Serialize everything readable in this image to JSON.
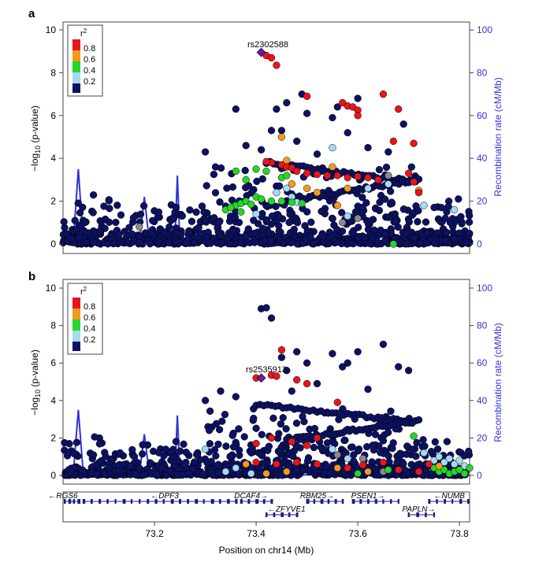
{
  "figure": {
    "xlabel": "Position on chr14 (Mb)",
    "x_ticks": [
      "73.2",
      "73.4",
      "73.6",
      "73.8"
    ]
  },
  "colors": {
    "r2_0.8": "#e8161b",
    "r2_0.6": "#f39a1d",
    "r2_0.4": "#27d628",
    "r2_0.2": "#a6d9f2",
    "r2_0.0": "#0c1261",
    "lead": "#6a1ca0",
    "missing": "#8a8a8a",
    "recomb": "#3232d9"
  },
  "legend": {
    "title_base": "r",
    "title_sup": "2",
    "labels": [
      "0.8",
      "0.6",
      "0.4",
      "0.2"
    ]
  },
  "panels": [
    {
      "letter": "a",
      "lead_snp": "rs2302588",
      "ylabel_prefix": "−log",
      "ylabel_sub": "10",
      "ylabel_suffix": " (p-value)",
      "y2label": "Recombination rate (cM/Mb)",
      "y_ticks": [
        "0",
        "2",
        "4",
        "6",
        "8",
        "10"
      ],
      "y2_ticks": [
        "0",
        "20",
        "40",
        "60",
        "80",
        "100"
      ]
    },
    {
      "letter": "b",
      "lead_snp": "rs2535913",
      "ylabel_prefix": "−log",
      "ylabel_sub": "10",
      "ylabel_suffix": " (p-value)",
      "y2label": "Recombination rate (cM/Mb)",
      "y_ticks": [
        "0",
        "2",
        "4",
        "6",
        "8",
        "10"
      ],
      "y2_ticks": [
        "0",
        "20",
        "40",
        "60",
        "80",
        "100"
      ]
    }
  ],
  "genes": [
    {
      "name": "RGS6",
      "start": 73.02,
      "end": 73.05,
      "strand": "-",
      "row": 0,
      "label_x": 73.02
    },
    {
      "name": "DPF3",
      "start": 73.06,
      "end": 73.36,
      "strand": "-",
      "row": 0,
      "label_x": 73.22
    },
    {
      "name": "DCAF4",
      "start": 73.37,
      "end": 73.43,
      "strand": "+",
      "row": 0,
      "label_x": 73.39
    },
    {
      "name": "ZFYVE1",
      "start": 73.42,
      "end": 73.48,
      "strand": "-",
      "row": 1,
      "label_x": 73.46
    },
    {
      "name": "RBM25",
      "start": 73.5,
      "end": 73.57,
      "strand": "+",
      "row": 0,
      "label_x": 73.52
    },
    {
      "name": "PSEN1",
      "start": 73.59,
      "end": 73.68,
      "strand": "+",
      "row": 0,
      "label_x": 73.62
    },
    {
      "name": "PAPLN",
      "start": 73.7,
      "end": 73.75,
      "strand": "+",
      "row": 1,
      "label_x": 73.72
    },
    {
      "name": "NUMB",
      "start": 73.74,
      "end": 73.82,
      "strand": "-",
      "row": 0,
      "label_x": 73.78
    }
  ],
  "chart_data": [
    {
      "type": "scatter",
      "xlabel": "Position on chr14 (Mb)",
      "ylabel": "−log10 (p-value)",
      "y2label": "Recombination rate (cM/Mb)",
      "xlim": [
        73.02,
        73.82
      ],
      "ylim": [
        0,
        10
      ],
      "y2lim": [
        0,
        100
      ],
      "annotation": "rs2302588",
      "points": [
        [
          73.41,
          8.95,
          "lead"
        ],
        [
          73.42,
          8.8,
          "0.8"
        ],
        [
          73.43,
          8.7,
          "0.8"
        ],
        [
          73.44,
          8.35,
          "0.8"
        ],
        [
          73.5,
          6.9,
          "0.8"
        ],
        [
          73.57,
          6.6,
          "0.8"
        ],
        [
          73.58,
          6.45,
          "0.8"
        ],
        [
          73.59,
          6.4,
          "0.8"
        ],
        [
          73.6,
          6.25,
          "0.8"
        ],
        [
          73.65,
          7.0,
          "0.8"
        ],
        [
          73.6,
          6.0,
          "0.8"
        ],
        [
          73.67,
          4.8,
          "0.8"
        ],
        [
          73.71,
          4.7,
          "0.8"
        ],
        [
          73.68,
          6.3,
          "0.8"
        ],
        [
          73.45,
          3.7,
          "0.8"
        ],
        [
          73.46,
          3.6,
          "0.8"
        ],
        [
          73.47,
          3.55,
          "0.8"
        ],
        [
          73.48,
          3.4,
          "0.8"
        ],
        [
          73.5,
          3.3,
          "0.8"
        ],
        [
          73.52,
          3.25,
          "0.8"
        ],
        [
          73.54,
          3.2,
          "0.8"
        ],
        [
          73.56,
          3.2,
          "0.8"
        ],
        [
          73.58,
          3.1,
          "0.8"
        ],
        [
          73.6,
          3.15,
          "0.8"
        ],
        [
          73.62,
          3.1,
          "0.8"
        ],
        [
          73.64,
          3.0,
          "0.8"
        ],
        [
          73.7,
          3.3,
          "0.8"
        ],
        [
          73.71,
          2.9,
          "0.8"
        ],
        [
          73.72,
          2.4,
          "0.8"
        ],
        [
          73.43,
          3.8,
          "0.8"
        ],
        [
          73.42,
          3.85,
          "0.8"
        ],
        [
          73.45,
          5.0,
          "0.6"
        ],
        [
          73.46,
          3.9,
          "0.6"
        ],
        [
          73.47,
          2.8,
          "0.6"
        ],
        [
          73.52,
          2.4,
          "0.6"
        ],
        [
          73.55,
          3.6,
          "0.6"
        ],
        [
          73.56,
          1.8,
          "0.6"
        ],
        [
          73.72,
          2.5,
          "0.6"
        ],
        [
          73.5,
          2.6,
          "0.6"
        ],
        [
          73.58,
          2.6,
          "0.6"
        ],
        [
          73.36,
          3.4,
          "0.4"
        ],
        [
          73.38,
          3.0,
          "0.4"
        ],
        [
          73.4,
          3.5,
          "0.4"
        ],
        [
          73.42,
          3.4,
          "0.4"
        ],
        [
          73.36,
          1.8,
          "0.4"
        ],
        [
          73.37,
          1.9,
          "0.4"
        ],
        [
          73.38,
          2.0,
          "0.4"
        ],
        [
          73.39,
          1.85,
          "0.4"
        ],
        [
          73.4,
          2.2,
          "0.4"
        ],
        [
          73.41,
          2.1,
          "0.4"
        ],
        [
          73.43,
          2.0,
          "0.4"
        ],
        [
          73.45,
          2.0,
          "0.4"
        ],
        [
          73.47,
          1.95,
          "0.4"
        ],
        [
          73.49,
          1.9,
          "0.4"
        ],
        [
          73.34,
          1.6,
          "0.4"
        ],
        [
          73.35,
          1.7,
          "0.4"
        ],
        [
          73.37,
          1.5,
          "0.4"
        ],
        [
          73.45,
          3.1,
          "0.4"
        ],
        [
          73.46,
          3.2,
          "0.4"
        ],
        [
          73.67,
          0.0,
          "0.4"
        ],
        [
          73.55,
          4.5,
          "0.2"
        ],
        [
          73.44,
          2.4,
          "0.2"
        ],
        [
          73.46,
          2.6,
          "0.2"
        ],
        [
          73.47,
          2.2,
          "0.2"
        ],
        [
          73.48,
          1.95,
          "0.2"
        ],
        [
          73.62,
          2.6,
          "0.2"
        ],
        [
          73.66,
          2.8,
          "0.2"
        ],
        [
          73.73,
          1.8,
          "0.2"
        ],
        [
          73.79,
          1.6,
          "0.2"
        ],
        [
          73.4,
          1.4,
          "0.2"
        ],
        [
          73.58,
          1.3,
          "0.2"
        ],
        [
          73.57,
          1.0,
          "missing"
        ],
        [
          73.6,
          1.2,
          "missing"
        ],
        [
          73.66,
          3.2,
          "missing"
        ],
        [
          73.17,
          0.8,
          "missing"
        ]
      ],
      "background": {
        "color": "0.0",
        "seed": 11,
        "n": 700,
        "dense_max": 1.0,
        "mid_max": 2.4,
        "high": [
          [
            73.43,
            5.3
          ],
          [
            73.45,
            5.3
          ],
          [
            73.44,
            6.3
          ],
          [
            73.46,
            6.6
          ],
          [
            73.5,
            6.1
          ],
          [
            73.55,
            5.9
          ],
          [
            73.52,
            4.2
          ],
          [
            73.58,
            5.2
          ],
          [
            73.62,
            4.5
          ],
          [
            73.66,
            4.3
          ],
          [
            73.49,
            7.0
          ],
          [
            73.48,
            4.8
          ],
          [
            73.36,
            6.3
          ],
          [
            73.3,
            4.3
          ],
          [
            73.32,
            3.6
          ],
          [
            73.38,
            4.6
          ],
          [
            73.41,
            4.4
          ],
          [
            73.56,
            6.4
          ],
          [
            73.6,
            6.8
          ],
          [
            73.69,
            5.6
          ]
        ],
        "band": {
          "x0": 73.42,
          "x1": 73.71,
          "y0": 3.8,
          "y1": 2.9
        },
        "band2": {
          "x0": 73.46,
          "x1": 73.72,
          "y0": 2.0,
          "y1": 3.0
        }
      },
      "recombination": [
        [
          73.02,
          0.0
        ],
        [
          73.04,
          0.2
        ],
        [
          73.05,
          35
        ],
        [
          73.06,
          0.3
        ],
        [
          73.17,
          0.2
        ],
        [
          73.18,
          22
        ],
        [
          73.19,
          0.5
        ],
        [
          73.24,
          0.3
        ],
        [
          73.245,
          32
        ],
        [
          73.25,
          0.4
        ],
        [
          73.82,
          0.2
        ]
      ]
    },
    {
      "type": "scatter",
      "xlabel": "Position on chr14 (Mb)",
      "ylabel": "−log10 (p-value)",
      "y2label": "Recombination rate (cM/Mb)",
      "xlim": [
        73.02,
        73.82
      ],
      "ylim": [
        0,
        10
      ],
      "y2lim": [
        0,
        100
      ],
      "annotation": "rs2535913",
      "points": [
        [
          73.41,
          5.2,
          "lead"
        ],
        [
          73.4,
          5.2,
          "0.8"
        ],
        [
          73.43,
          5.35,
          "0.8"
        ],
        [
          73.45,
          6.7,
          "0.8"
        ],
        [
          73.48,
          5.1,
          "0.8"
        ],
        [
          73.5,
          4.9,
          "0.8"
        ],
        [
          73.56,
          3.9,
          "0.8"
        ],
        [
          73.44,
          5.3,
          "0.8"
        ],
        [
          73.4,
          1.7,
          "0.8"
        ],
        [
          73.43,
          2.0,
          "0.8"
        ],
        [
          73.47,
          1.8,
          "0.8"
        ],
        [
          73.5,
          1.6,
          "0.8"
        ],
        [
          73.52,
          2.0,
          "0.8"
        ],
        [
          73.4,
          0.7,
          "0.8"
        ],
        [
          73.44,
          0.6,
          "0.8"
        ],
        [
          73.48,
          0.7,
          "0.8"
        ],
        [
          73.52,
          0.6,
          "0.8"
        ],
        [
          73.58,
          0.4,
          "0.8"
        ],
        [
          73.61,
          0.55,
          "0.8"
        ],
        [
          73.65,
          0.7,
          "0.8"
        ],
        [
          73.68,
          0.3,
          "0.8"
        ],
        [
          73.72,
          0.2,
          "0.8"
        ],
        [
          73.74,
          0.6,
          "0.8"
        ],
        [
          73.38,
          0.6,
          "0.6"
        ],
        [
          73.42,
          0.1,
          "0.6"
        ],
        [
          73.46,
          0.2,
          "0.6"
        ],
        [
          73.56,
          0.4,
          "0.6"
        ],
        [
          73.62,
          0.2,
          "0.6"
        ],
        [
          73.76,
          0.5,
          "0.6"
        ],
        [
          73.71,
          2.1,
          "0.4"
        ],
        [
          73.74,
          0.6,
          "0.4"
        ],
        [
          73.75,
          0.4,
          "0.4"
        ],
        [
          73.76,
          0.2,
          "0.4"
        ],
        [
          73.77,
          0.3,
          "0.4"
        ],
        [
          73.78,
          0.1,
          "0.4"
        ],
        [
          73.79,
          0.2,
          "0.4"
        ],
        [
          73.8,
          0.3,
          "0.4"
        ],
        [
          73.81,
          0.1,
          "0.4"
        ],
        [
          73.82,
          0.4,
          "0.4"
        ],
        [
          73.6,
          0.1,
          "0.4"
        ],
        [
          73.66,
          0.3,
          "0.4"
        ],
        [
          73.3,
          1.4,
          "0.2"
        ],
        [
          73.34,
          0.2,
          "0.2"
        ],
        [
          73.36,
          0.4,
          "0.2"
        ],
        [
          73.39,
          0.1,
          "0.2"
        ],
        [
          73.75,
          0.8,
          "0.2"
        ],
        [
          73.76,
          1.0,
          "0.2"
        ],
        [
          73.77,
          0.7,
          "0.2"
        ],
        [
          73.78,
          0.9,
          "0.2"
        ],
        [
          73.79,
          0.6,
          "0.2"
        ],
        [
          73.8,
          0.8,
          "0.2"
        ],
        [
          73.81,
          0.5,
          "0.2"
        ],
        [
          73.73,
          1.2,
          "0.2"
        ],
        [
          73.55,
          1.4,
          "0.2"
        ],
        [
          73.58,
          0.9,
          "0.2"
        ],
        [
          73.56,
          1.1,
          "missing"
        ],
        [
          73.61,
          0.9,
          "missing"
        ],
        [
          73.65,
          0.2,
          "missing"
        ]
      ],
      "background": {
        "color": "0.0",
        "seed": 29,
        "n": 700,
        "dense_max": 1.0,
        "mid_max": 2.6,
        "high": [
          [
            73.41,
            8.9
          ],
          [
            73.42,
            8.95
          ],
          [
            73.43,
            8.4
          ],
          [
            73.45,
            6.3
          ],
          [
            73.48,
            6.6
          ],
          [
            73.5,
            6.0
          ],
          [
            73.55,
            6.5
          ],
          [
            73.58,
            6.0
          ],
          [
            73.6,
            6.6
          ],
          [
            73.65,
            7.0
          ],
          [
            73.68,
            5.8
          ],
          [
            73.7,
            5.6
          ],
          [
            73.46,
            5.6
          ],
          [
            73.52,
            4.9
          ],
          [
            73.62,
            4.6
          ],
          [
            73.3,
            4.0
          ],
          [
            73.33,
            4.5
          ],
          [
            73.36,
            4.2
          ],
          [
            73.47,
            4.5
          ],
          [
            73.57,
            5.8
          ]
        ],
        "band": {
          "x0": 73.4,
          "x1": 73.7,
          "y0": 3.8,
          "y1": 2.9
        },
        "band2": {
          "x0": 73.46,
          "x1": 73.72,
          "y0": 1.9,
          "y1": 2.9
        }
      },
      "recombination": [
        [
          73.02,
          0.0
        ],
        [
          73.04,
          0.2
        ],
        [
          73.05,
          35
        ],
        [
          73.06,
          0.3
        ],
        [
          73.17,
          0.2
        ],
        [
          73.18,
          22
        ],
        [
          73.19,
          0.5
        ],
        [
          73.24,
          0.3
        ],
        [
          73.245,
          32
        ],
        [
          73.25,
          0.4
        ],
        [
          73.82,
          0.2
        ]
      ]
    }
  ]
}
